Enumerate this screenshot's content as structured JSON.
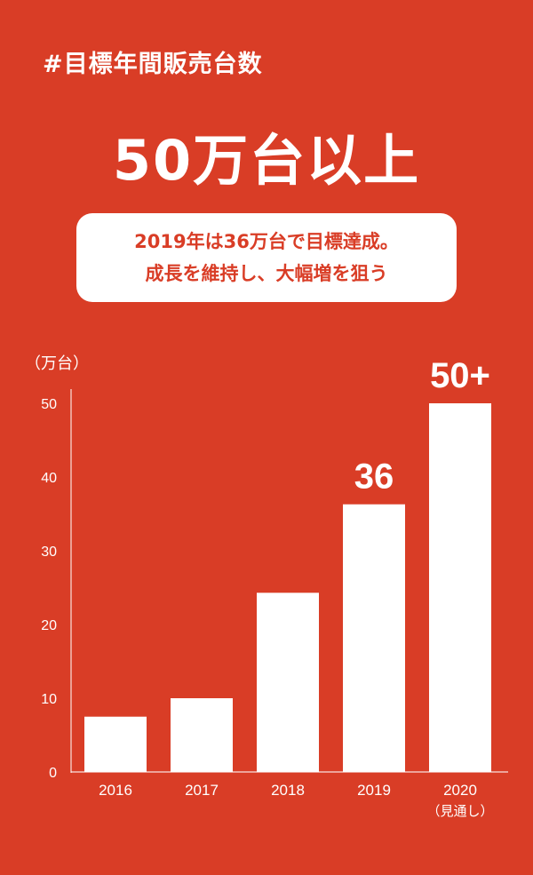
{
  "header": {
    "hashtag": "#目標年間販売台数",
    "headline": "50万台以上",
    "note_line1": "2019年は36万台で目標達成。",
    "note_line2": "成長を維持し、大幅増を狙う"
  },
  "colors": {
    "background": "#d93d26",
    "bar": "#ffffff",
    "note_text": "#d93d26"
  },
  "chart_data": {
    "type": "bar",
    "title": "",
    "ylabel": "（万台）",
    "xlabel": "",
    "ylim": [
      0,
      50
    ],
    "yticks": [
      0,
      10,
      20,
      30,
      40,
      50
    ],
    "categories": [
      "2016",
      "2017",
      "2018",
      "2019",
      "2020"
    ],
    "category_sublabels": [
      "",
      "",
      "",
      "",
      "（見通し）"
    ],
    "values": [
      7.5,
      10,
      24.3,
      36.3,
      50
    ],
    "data_labels": [
      "",
      "",
      "",
      "36",
      "50+"
    ],
    "grid": false,
    "legend": "none"
  }
}
